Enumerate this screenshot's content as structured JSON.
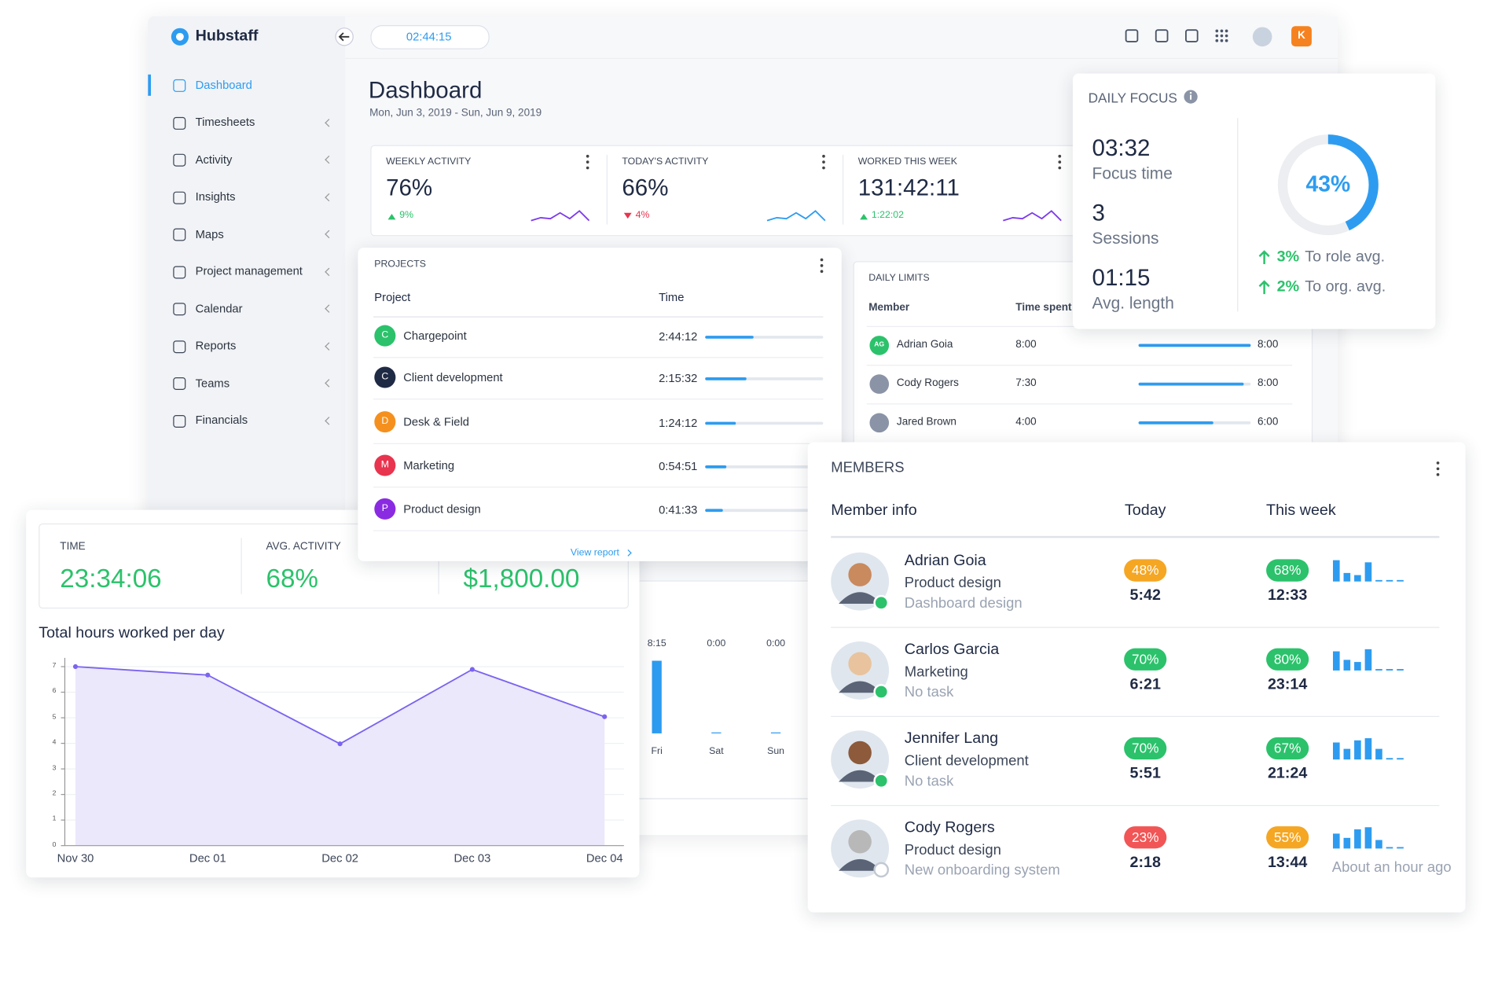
{
  "sidebar": {
    "brand": "Hubstaff",
    "nav": [
      "Dashboard",
      "Timesheets",
      "Activity",
      "Insights",
      "Maps",
      "Project management",
      "Calendar",
      "Reports",
      "Teams",
      "Financials"
    ],
    "active": 0
  },
  "topbar": {
    "timer": "02:44:15",
    "user_initial": "K"
  },
  "dashboard": {
    "title": "Dashboard",
    "date_range": "Mon, Jun 3, 2019 - Sun, Jun 9, 2019",
    "stats": [
      {
        "label": "WEEKLY ACTIVITY",
        "value": "76%",
        "change": "9%",
        "trend": "up"
      },
      {
        "label": "TODAY'S ACTIVITY",
        "value": "66%",
        "change": "4%",
        "trend": "down"
      },
      {
        "label": "WORKED THIS WEEK",
        "value": "131:42:11",
        "change": "1:22:02",
        "trend": "up"
      }
    ]
  },
  "projects": {
    "title": "PROJECTS",
    "columns": [
      "Project",
      "Time"
    ],
    "rows": [
      {
        "initial": "C",
        "name": "Chargepoint",
        "time": "2:44:12",
        "progress": 41,
        "color": "#2bc26b"
      },
      {
        "initial": "C",
        "name": "Client development",
        "time": "2:15:32",
        "progress": 35,
        "color": "#1f2a44"
      },
      {
        "initial": "D",
        "name": "Desk & Field",
        "time": "1:24:12",
        "progress": 26,
        "color": "#f5901e"
      },
      {
        "initial": "M",
        "name": "Marketing",
        "time": "0:54:51",
        "progress": 18,
        "color": "#e8344e"
      },
      {
        "initial": "P",
        "name": "Product design",
        "time": "0:41:33",
        "progress": 15,
        "color": "#8a2be2"
      }
    ],
    "link": "View report"
  },
  "daily_limits": {
    "title": "DAILY LIMITS",
    "columns": [
      "Member",
      "Time spent"
    ],
    "rows": [
      {
        "initials": "AG",
        "name": "Adrian Goia",
        "time_spent": "8:00",
        "limit": "8:00"
      },
      {
        "name": "Cody Rogers",
        "time_spent": "7:30",
        "limit": "8:00"
      },
      {
        "name": "Jared Brown",
        "time_spent": "4:00",
        "limit": "6:00"
      }
    ]
  },
  "weekly_hours": {
    "values": [
      "8:15",
      "0:00",
      "0:00"
    ],
    "days": [
      "Fri",
      "Sat",
      "Sun"
    ]
  },
  "daily_focus": {
    "title": "DAILY FOCUS",
    "metrics": [
      {
        "value": "03:32",
        "label": "Focus time"
      },
      {
        "value": "3",
        "label": "Sessions"
      },
      {
        "value": "01:15",
        "label": "Avg. length"
      }
    ],
    "percent": "43%",
    "comparisons": [
      {
        "change": "3%",
        "label": "To role avg."
      },
      {
        "change": "2%",
        "label": "To org. avg."
      }
    ]
  },
  "summary": {
    "stats": [
      {
        "label": "TIME",
        "value": "23:34:06"
      },
      {
        "label": "AVG. ACTIVITY",
        "value": "68%"
      },
      {
        "value": "$1,800.00"
      }
    ]
  },
  "chart_data": {
    "type": "line",
    "title": "Total hours worked per day",
    "categories": [
      "Nov 30",
      "Dec 01",
      "Dec 02",
      "Dec 03",
      "Dec 04"
    ],
    "values": [
      7,
      6.67,
      3.98,
      6.89,
      5.04
    ],
    "ylim": [
      0,
      7
    ],
    "yticks": [
      0,
      1,
      2,
      3,
      4,
      5,
      6,
      7
    ],
    "color": "#7c63f0",
    "fill": "#ebe8fc",
    "grid": true
  },
  "members": {
    "title": "MEMBERS",
    "columns": [
      "Member info",
      "Today",
      "This week"
    ],
    "rows": [
      {
        "name": "Adrian Goia",
        "project": "Product design",
        "task": "Dashboard design",
        "today_activity": "48%",
        "today_time": "5:42",
        "week_activity": "68%",
        "week_time": "12:33",
        "week_bars": [
          10,
          4,
          3,
          9,
          0,
          0,
          0
        ],
        "online": true
      },
      {
        "name": "Carlos Garcia",
        "project": "Marketing",
        "task": "No task",
        "today_activity": "70%",
        "today_time": "6:21",
        "week_activity": "80%",
        "week_time": "23:14",
        "week_bars": [
          9,
          5,
          4,
          10,
          0,
          0,
          0
        ],
        "online": true
      },
      {
        "name": "Jennifer Lang",
        "project": "Client development",
        "task": "No task",
        "today_activity": "70%",
        "today_time": "5:51",
        "week_activity": "67%",
        "week_time": "21:24",
        "week_bars": [
          8,
          5,
          9,
          10,
          5,
          0,
          0
        ],
        "online": true
      },
      {
        "name": "Cody Rogers",
        "project": "Product design",
        "task": "New onboarding system",
        "today_activity": "23%",
        "today_time": "2:18",
        "week_activity": "55%",
        "week_time": "13:44",
        "week_bars": [
          7,
          5,
          9,
          10,
          4,
          0,
          0
        ],
        "online": false,
        "last_seen": "About an hour ago"
      }
    ]
  }
}
